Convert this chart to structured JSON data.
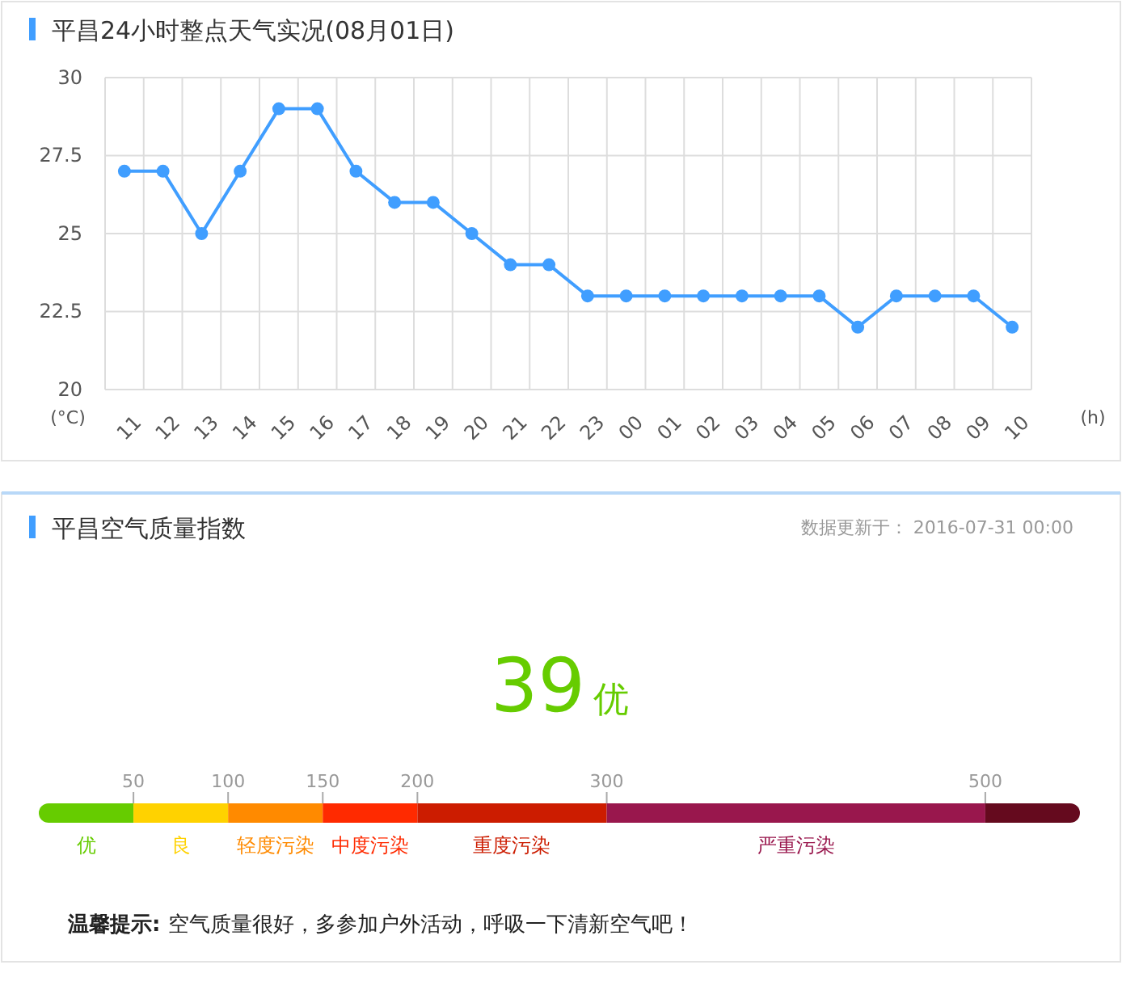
{
  "chart_data": [
    {
      "type": "line",
      "title": "平昌24小时整点天气实况(08月01日)",
      "ylabel": "(°C)",
      "xlabel": "(h)",
      "categories": [
        "11",
        "12",
        "13",
        "14",
        "15",
        "16",
        "17",
        "18",
        "19",
        "20",
        "21",
        "22",
        "23",
        "00",
        "01",
        "02",
        "03",
        "04",
        "05",
        "06",
        "07",
        "08",
        "09",
        "10"
      ],
      "series": [
        {
          "color": "#409eff",
          "values": [
            27,
            27,
            25,
            27,
            29,
            29,
            27,
            26,
            26,
            25,
            24,
            24,
            23,
            23,
            23,
            23,
            23,
            23,
            23,
            22,
            23,
            23,
            23,
            22
          ]
        }
      ],
      "ylim": [
        20,
        30
      ],
      "yticks": [
        20,
        22.5,
        25,
        27.5,
        30
      ],
      "grid": true,
      "marker": "circle",
      "line_style": "solid"
    },
    {
      "type": "bar",
      "orientation": "horizontal",
      "stacked": true,
      "title": "平昌空气质量指数",
      "subtitle": "数据更新于： 2016-07-31 00:00",
      "categories": [
        null
      ],
      "series": [
        {
          "name": "优",
          "color": "#66cc00",
          "values": [
            50
          ]
        },
        {
          "name": "良",
          "color": "#ffd200",
          "values": [
            50
          ]
        },
        {
          "name": "轻度污染",
          "color": "#ff8a00",
          "values": [
            50
          ]
        },
        {
          "name": "中度污染",
          "color": "#ff2a00",
          "values": [
            50
          ]
        },
        {
          "name": "重度污染",
          "color": "#cc1c00",
          "values": [
            100
          ]
        },
        {
          "name": "严重污染",
          "color": "#99174d",
          "values": [
            200
          ]
        },
        {
          "color": "#650a1e",
          "values": [
            50
          ]
        }
      ],
      "xlim": [
        0,
        550
      ],
      "xticks": [
        50,
        100,
        150,
        200,
        300,
        500
      ],
      "annotations": [
        "39",
        "优",
        "温馨提示:",
        "空气质量很好，多参加户外活动，呼吸一下清新空气吧！"
      ]
    }
  ]
}
